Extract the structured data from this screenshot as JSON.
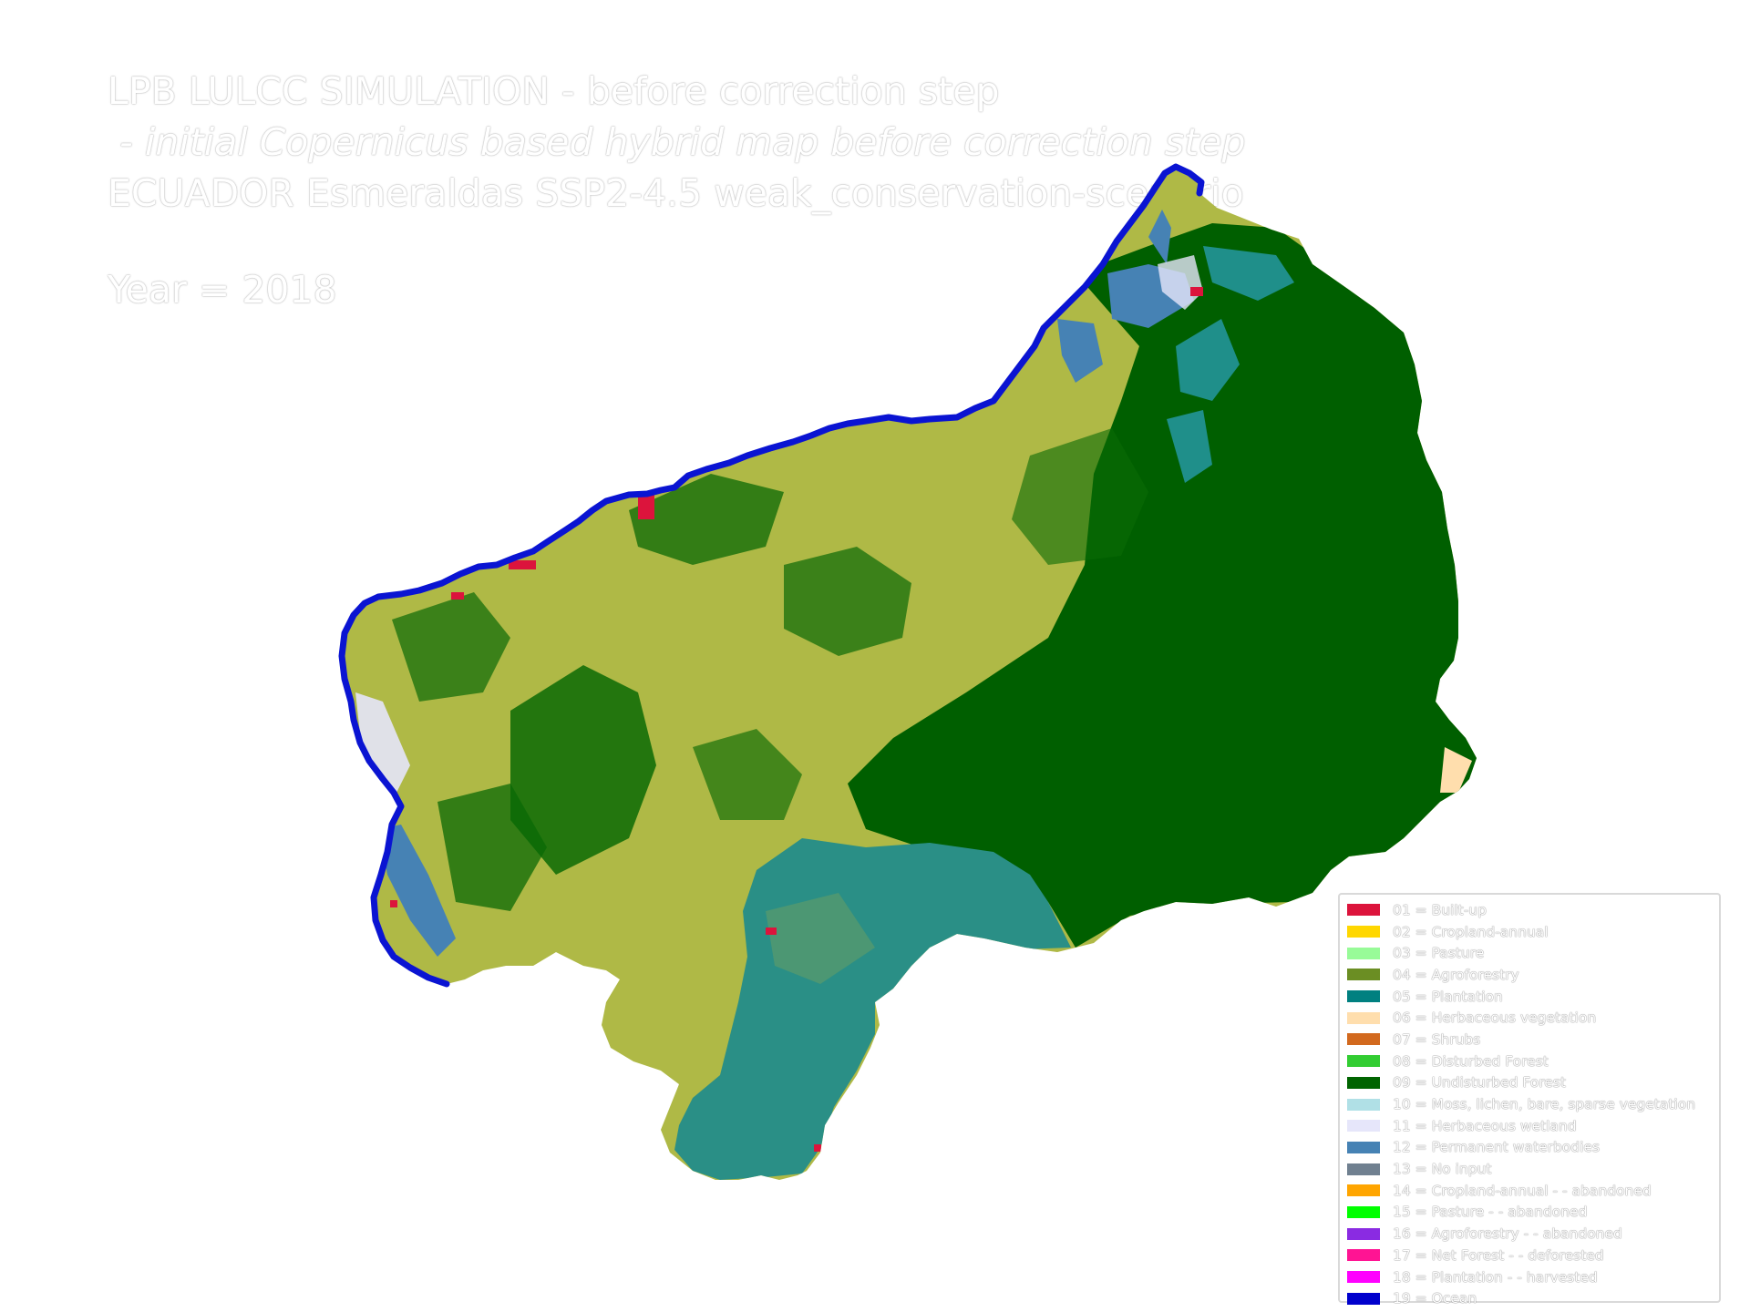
{
  "title": {
    "line1": "LPB LULCC SIMULATION - before correction step",
    "line2": " - initial Copernicus based hybrid map before correction step",
    "line3": "ECUADOR Esmeraldas SSP2-4.5 weak_conservation-scenario",
    "year": "Year = 2018"
  },
  "legend": [
    {
      "label": "01 = Built-up",
      "color": "#dc143c"
    },
    {
      "label": "02 = Cropland-annual",
      "color": "#ffd700"
    },
    {
      "label": "03 = Pasture",
      "color": "#98fb98"
    },
    {
      "label": "04 = Agroforestry",
      "color": "#6b8e23"
    },
    {
      "label": "05 = Plantation",
      "color": "#008080"
    },
    {
      "label": "06 = Herbaceous vegetation",
      "color": "#ffdead"
    },
    {
      "label": "07 = Shrubs",
      "color": "#d2691e"
    },
    {
      "label": "08 = Disturbed Forest",
      "color": "#32cd32"
    },
    {
      "label": "09 = Undisturbed Forest",
      "color": "#006400"
    },
    {
      "label": "10 = Moss, lichen, bare, sparse vegetation",
      "color": "#b0e0e6"
    },
    {
      "label": "11 = Herbaceous wetland",
      "color": "#e6e6fa"
    },
    {
      "label": "12 = Permanent waterbodies",
      "color": "#4682b4"
    },
    {
      "label": "13 = No input",
      "color": "#708090"
    },
    {
      "label": "14 = Cropland-annual - - abandoned",
      "color": "#ffa500"
    },
    {
      "label": "15 = Pasture - - abandoned",
      "color": "#00ff00"
    },
    {
      "label": "16 = Agroforestry - - abandoned",
      "color": "#8a2be2"
    },
    {
      "label": "17 = Net Forest - - deforested",
      "color": "#ff1493"
    },
    {
      "label": "18 = Plantation - - harvested",
      "color": "#ff00ff"
    },
    {
      "label": "19 = Ocean",
      "color": "#0000cd"
    }
  ],
  "map_colors": {
    "ocean_coast": "#0a14d2",
    "mixed_crop": "#b9c24a",
    "undisturbed_forest": "#005f00",
    "plantation": "#1f8f8a",
    "waterbodies": "#4682b4",
    "built_up": "#dc143c",
    "herbaceous_vegetation": "#ffdead"
  }
}
